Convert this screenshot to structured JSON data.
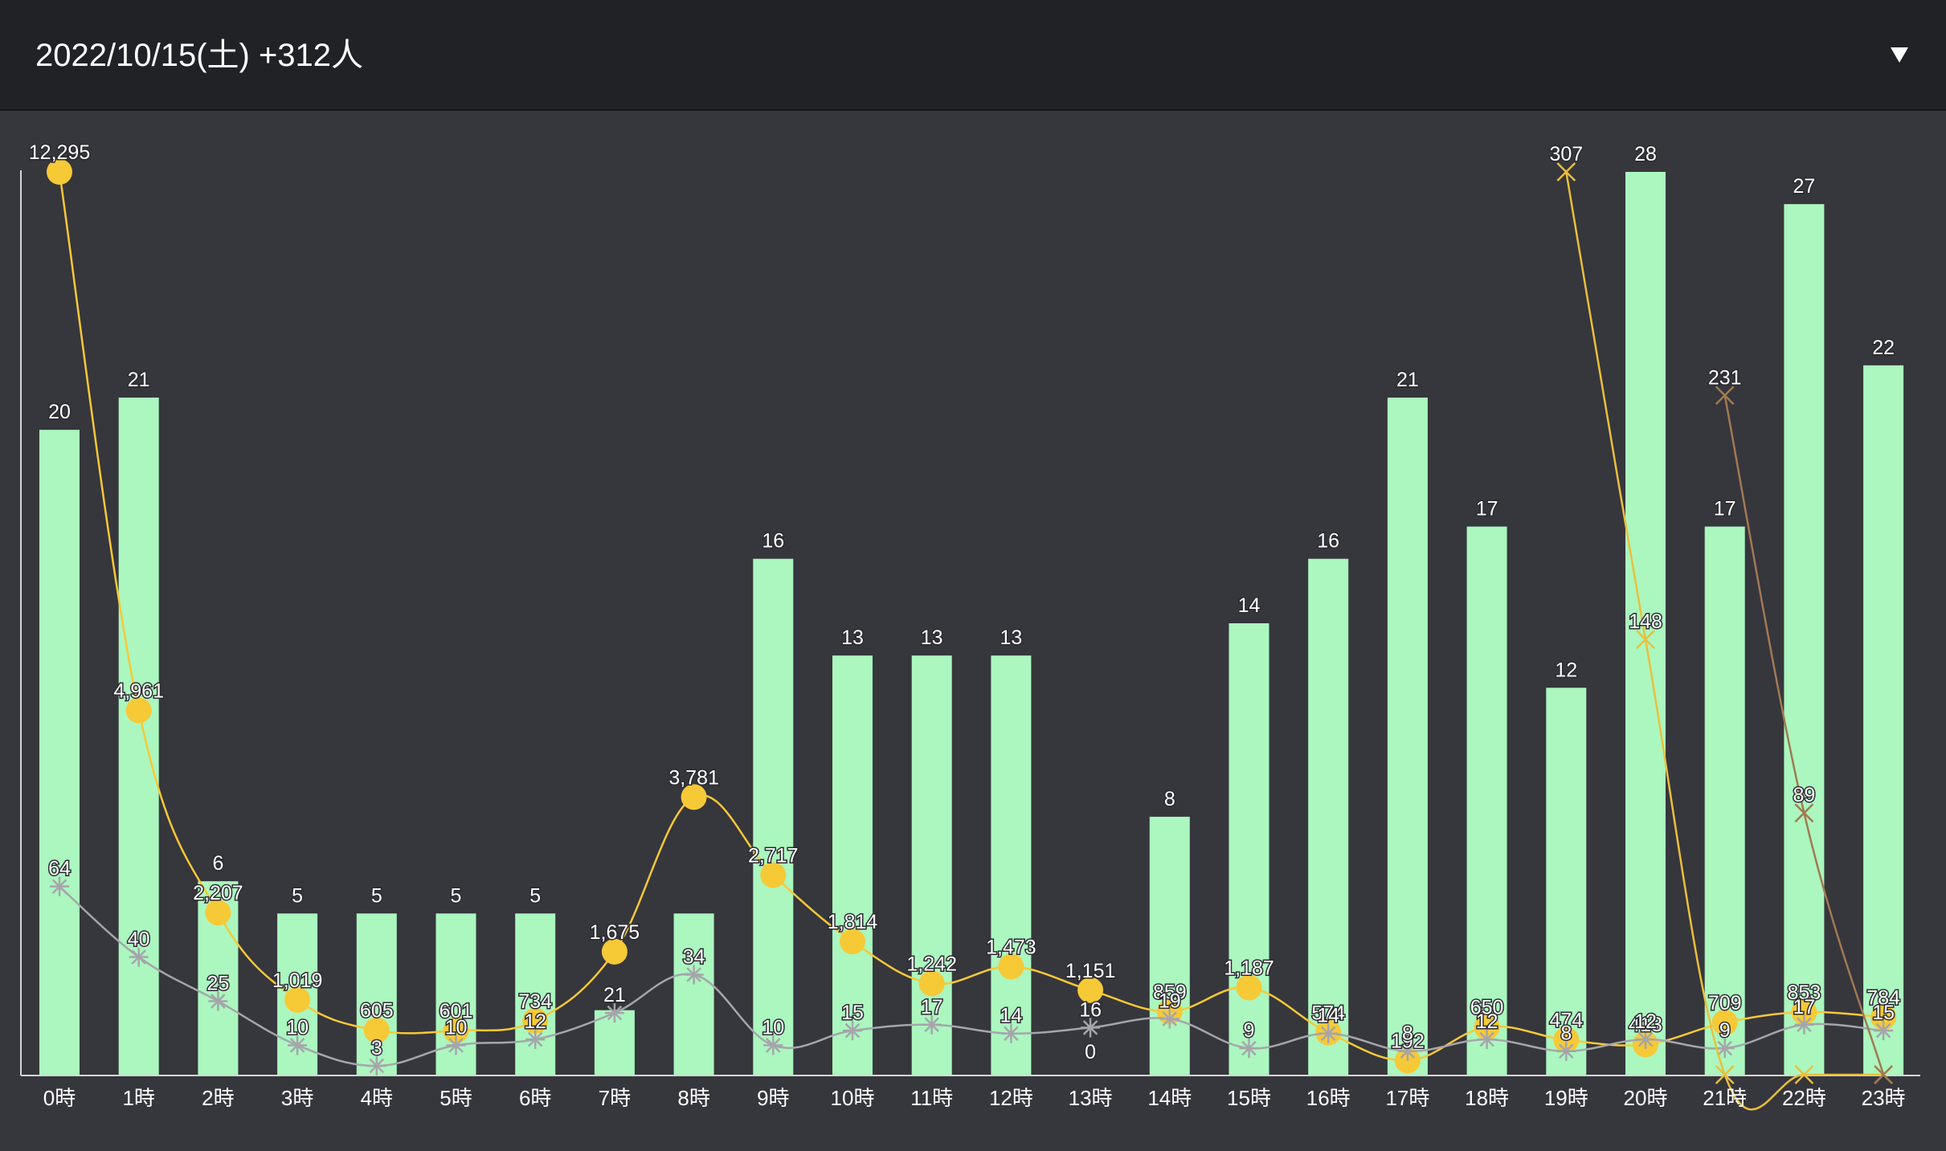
{
  "header": {
    "title": "2022/10/15(土) +312人",
    "dropdown_icon": "chevron-down-icon"
  },
  "colors": {
    "background": "#36363d",
    "header": "#212226",
    "bars": "#abf7bf",
    "yellow_line": "#f6c937",
    "gray_line": "#a5a5ab",
    "x_line_yellow": "#e9c03d",
    "x_line_brown": "#a07a52",
    "axis": "#d6d6d6",
    "label": "#ffffff"
  },
  "chart_data": {
    "type": "bar",
    "categories": [
      "0時",
      "1時",
      "2時",
      "3時",
      "4時",
      "5時",
      "6時",
      "7時",
      "8時",
      "9時",
      "10時",
      "11時",
      "12時",
      "13時",
      "14時",
      "15時",
      "16時",
      "17時",
      "18時",
      "19時",
      "20時",
      "21時",
      "22時",
      "23時"
    ],
    "grid": false,
    "series": [
      {
        "type": "bar",
        "values": [
          20,
          21,
          6,
          5,
          5,
          5,
          5,
          2,
          5,
          16,
          13,
          13,
          13,
          0,
          8,
          14,
          16,
          21,
          17,
          12,
          28,
          17,
          27,
          22
        ],
        "labels": [
          "20",
          "21",
          "6",
          "5",
          "5",
          "5",
          "5",
          "",
          "",
          "16",
          "13",
          "13",
          "13",
          "",
          "8",
          "14",
          "16",
          "21",
          "17",
          "12",
          "28",
          "17",
          "27",
          "22"
        ]
      },
      {
        "type": "line",
        "marker": "circle",
        "values": [
          12295,
          4961,
          2207,
          1019,
          605,
          601,
          734,
          1675,
          3781,
          2717,
          1814,
          1242,
          1473,
          1151,
          859,
          1187,
          574,
          192,
          650,
          474,
          413,
          709,
          853,
          784
        ],
        "labels": [
          "12,295",
          "4,961",
          "2,207",
          "1,019",
          "605",
          "601",
          "734",
          "1,675",
          "3,781",
          "2,717",
          "1,814",
          "1,242",
          "1,473",
          "1,151",
          "859",
          "1,187",
          "574",
          "192",
          "650",
          "474",
          "413",
          "709",
          "853",
          "784"
        ]
      },
      {
        "type": "line",
        "marker": "asterisk",
        "values": [
          64,
          40,
          25,
          10,
          3,
          10,
          12,
          21,
          34,
          10,
          15,
          17,
          14,
          16,
          19,
          9,
          14,
          8,
          12,
          8,
          12,
          9,
          17,
          15
        ],
        "labels": [
          "64",
          "40",
          "25",
          "10",
          "3",
          "10",
          "12",
          "21",
          "34",
          "10",
          "15",
          "17",
          "14",
          "16",
          "19",
          "9",
          "14",
          "8",
          "12",
          "8",
          "12",
          "9",
          "17",
          "15"
        ]
      },
      {
        "type": "line",
        "marker": "x",
        "values": [
          null,
          null,
          null,
          null,
          null,
          null,
          null,
          null,
          null,
          null,
          null,
          null,
          null,
          null,
          null,
          null,
          null,
          null,
          null,
          307,
          148,
          0,
          0,
          0
        ],
        "labels": [
          "",
          "",
          "",
          "",
          "",
          "",
          "",
          "",
          "",
          "",
          "",
          "",
          "",
          "",
          "",
          "",
          "",
          "",
          "",
          "307",
          "148",
          "",
          "",
          ""
        ]
      },
      {
        "type": "line",
        "marker": "x",
        "values": [
          null,
          null,
          null,
          null,
          null,
          null,
          null,
          null,
          null,
          null,
          null,
          null,
          null,
          null,
          null,
          null,
          null,
          null,
          null,
          null,
          null,
          231,
          89,
          0
        ],
        "labels": [
          "",
          "",
          "",
          "",
          "",
          "",
          "",
          "",
          "",
          "",
          "",
          "",
          "",
          "",
          "",
          "",
          "",
          "",
          "",
          "",
          "",
          "231",
          "89",
          ""
        ]
      }
    ],
    "zero_labels": [
      {
        "category": "13時",
        "text": "0"
      }
    ]
  }
}
